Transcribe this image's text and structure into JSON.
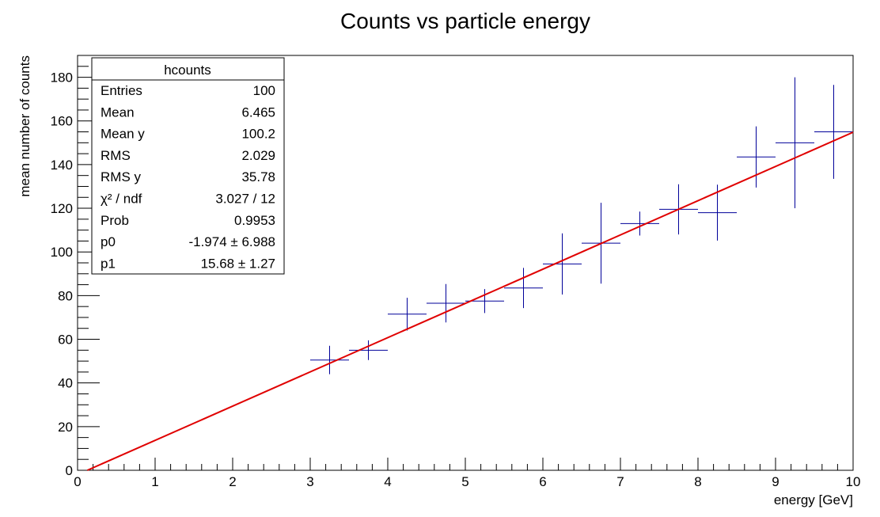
{
  "chart_data": {
    "type": "scatter",
    "title": "Counts vs particle energy",
    "xlabel": "energy [GeV]",
    "ylabel": "mean number of counts",
    "xlim": [
      0,
      10
    ],
    "ylim": [
      0,
      190
    ],
    "x_ticks": [
      0,
      1,
      2,
      3,
      4,
      5,
      6,
      7,
      8,
      9,
      10
    ],
    "y_ticks": [
      0,
      20,
      40,
      60,
      80,
      100,
      120,
      140,
      160,
      180
    ],
    "grid": false,
    "marker_color": "#000099",
    "fit_color": "#e00000",
    "series": [
      {
        "points": [
          {
            "x": 3.25,
            "xerr": 0.25,
            "y": 50.5,
            "yerr": 6.5
          },
          {
            "x": 3.75,
            "xerr": 0.25,
            "y": 55.0,
            "yerr": 4.5
          },
          {
            "x": 4.25,
            "xerr": 0.25,
            "y": 71.5,
            "yerr": 7.5
          },
          {
            "x": 4.75,
            "xerr": 0.25,
            "y": 76.5,
            "yerr": 8.8
          },
          {
            "x": 5.25,
            "xerr": 0.25,
            "y": 77.5,
            "yerr": 5.5
          },
          {
            "x": 5.75,
            "xerr": 0.25,
            "y": 83.5,
            "yerr": 9.2
          },
          {
            "x": 6.25,
            "xerr": 0.25,
            "y": 94.5,
            "yerr": 14.0
          },
          {
            "x": 6.75,
            "xerr": 0.25,
            "y": 104.0,
            "yerr": 18.5
          },
          {
            "x": 7.25,
            "xerr": 0.25,
            "y": 113.0,
            "yerr": 5.5
          },
          {
            "x": 7.75,
            "xerr": 0.25,
            "y": 119.5,
            "yerr": 11.5
          },
          {
            "x": 8.25,
            "xerr": 0.25,
            "y": 118.0,
            "yerr": 12.8
          },
          {
            "x": 8.75,
            "xerr": 0.25,
            "y": 143.5,
            "yerr": 14.0
          },
          {
            "x": 9.25,
            "xerr": 0.25,
            "y": 150.0,
            "yerr": 30.0
          },
          {
            "x": 9.75,
            "xerr": 0.25,
            "y": 155.0,
            "yerr": 21.5
          }
        ]
      }
    ],
    "fit": {
      "p0": -1.974,
      "p1": 15.68,
      "x_from": 0.126,
      "x_to": 10
    }
  },
  "stats_box": {
    "title": "hcounts",
    "rows": [
      {
        "label": "Entries",
        "value": "100"
      },
      {
        "label": "Mean",
        "value": "6.465"
      },
      {
        "label": "Mean y",
        "value": "100.2"
      },
      {
        "label": "RMS",
        "value": "2.029"
      },
      {
        "label": "RMS y",
        "value": "35.78"
      },
      {
        "label": "χ² / ndf",
        "value": "3.027 / 12"
      },
      {
        "label": "Prob",
        "value": "0.9953"
      },
      {
        "label": "p0",
        "value": "-1.974 ± 6.988"
      },
      {
        "label": "p1",
        "value": "15.68 ± 1.27"
      }
    ]
  }
}
